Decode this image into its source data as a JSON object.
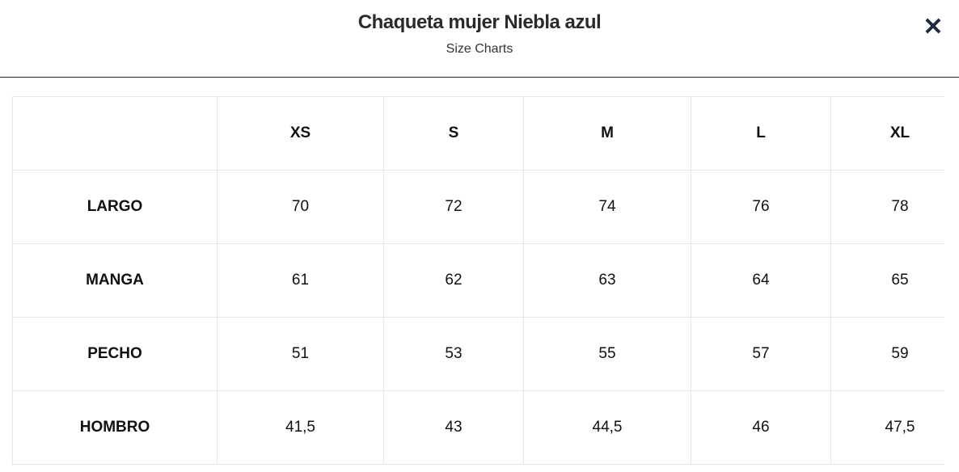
{
  "header": {
    "title": "Chaqueta mujer Niebla azul",
    "subtitle": "Size Charts",
    "close": "✕"
  },
  "table": {
    "columns": [
      "XS",
      "S",
      "M",
      "L",
      "XL"
    ],
    "rows": [
      {
        "label": "LARGO",
        "values": [
          "70",
          "72",
          "74",
          "76",
          "78"
        ]
      },
      {
        "label": "MANGA",
        "values": [
          "61",
          "62",
          "63",
          "64",
          "65"
        ]
      },
      {
        "label": "PECHO",
        "values": [
          "51",
          "53",
          "55",
          "57",
          "59"
        ]
      },
      {
        "label": "HOMBRO",
        "values": [
          "41,5",
          "43",
          "44,5",
          "46",
          "47,5"
        ]
      }
    ]
  }
}
